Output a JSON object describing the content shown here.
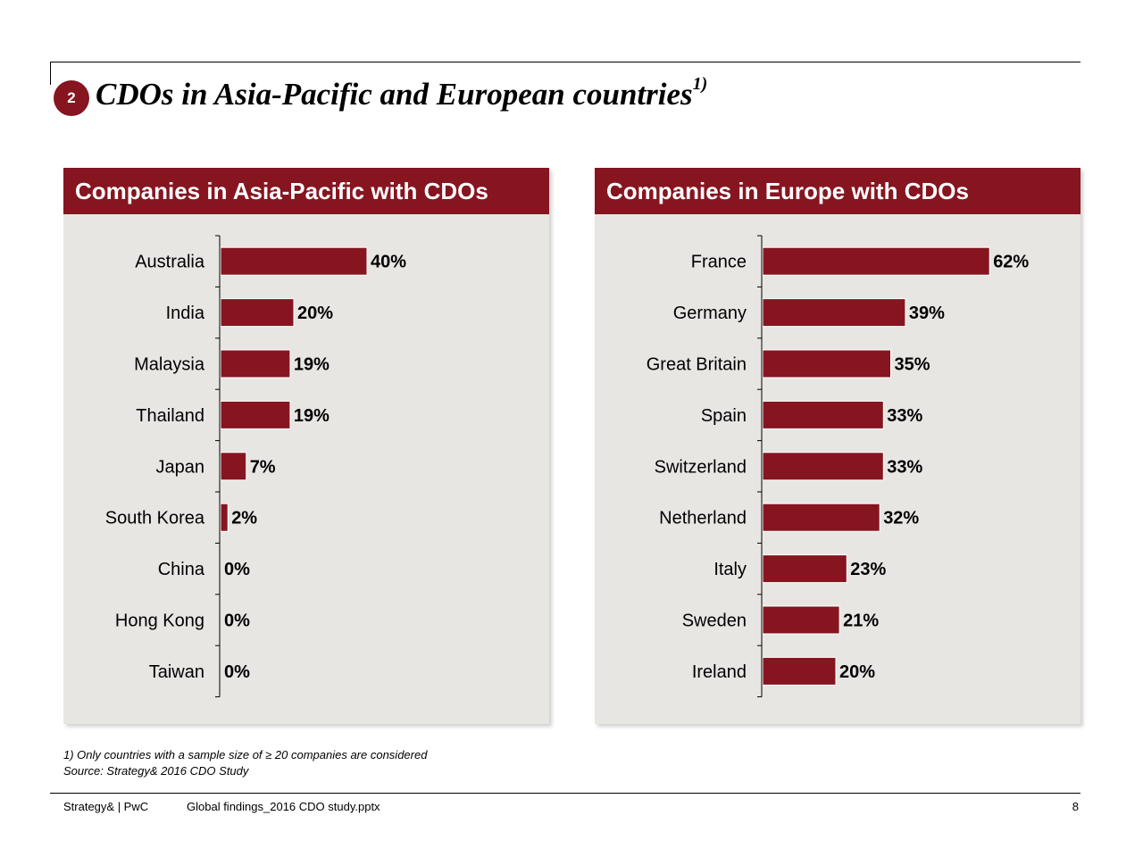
{
  "slide": {
    "number": "2",
    "title": "CDOs in Asia-Pacific and European countries",
    "title_sup": "1)",
    "footnote": "1) Only countries with a sample size of ≥ 20 companies are considered",
    "source": "Source: Strategy& 2016 CDO Study",
    "footer_brand": "Strategy& | PwC",
    "footer_file": "Global findings_2016 CDO study.pptx",
    "page_number": "8",
    "bar_color": "#861520",
    "panel_color": "#e8e6e2"
  },
  "chart_data": [
    {
      "type": "bar",
      "orientation": "horizontal",
      "title": "Companies in Asia-Pacific with CDOs",
      "categories": [
        "Australia",
        "India",
        "Malaysia",
        "Thailand",
        "Japan",
        "South Korea",
        "China",
        "Hong Kong",
        "Taiwan"
      ],
      "values": [
        40,
        20,
        19,
        19,
        7,
        2,
        0,
        0,
        0
      ],
      "value_labels": [
        "40%",
        "20%",
        "19%",
        "19%",
        "7%",
        "2%",
        "0%",
        "0%",
        "0%"
      ],
      "unit": "%",
      "xlim": [
        0,
        100
      ]
    },
    {
      "type": "bar",
      "orientation": "horizontal",
      "title": "Companies in Europe with CDOs",
      "categories": [
        "France",
        "Germany",
        "Great Britain",
        "Spain",
        "Switzerland",
        "Netherland",
        "Italy",
        "Sweden",
        "Ireland"
      ],
      "values": [
        62,
        39,
        35,
        33,
        33,
        32,
        23,
        21,
        20
      ],
      "value_labels": [
        "62%",
        "39%",
        "35%",
        "33%",
        "33%",
        "32%",
        "23%",
        "21%",
        "20%"
      ],
      "unit": "%",
      "xlim": [
        0,
        100
      ]
    }
  ]
}
